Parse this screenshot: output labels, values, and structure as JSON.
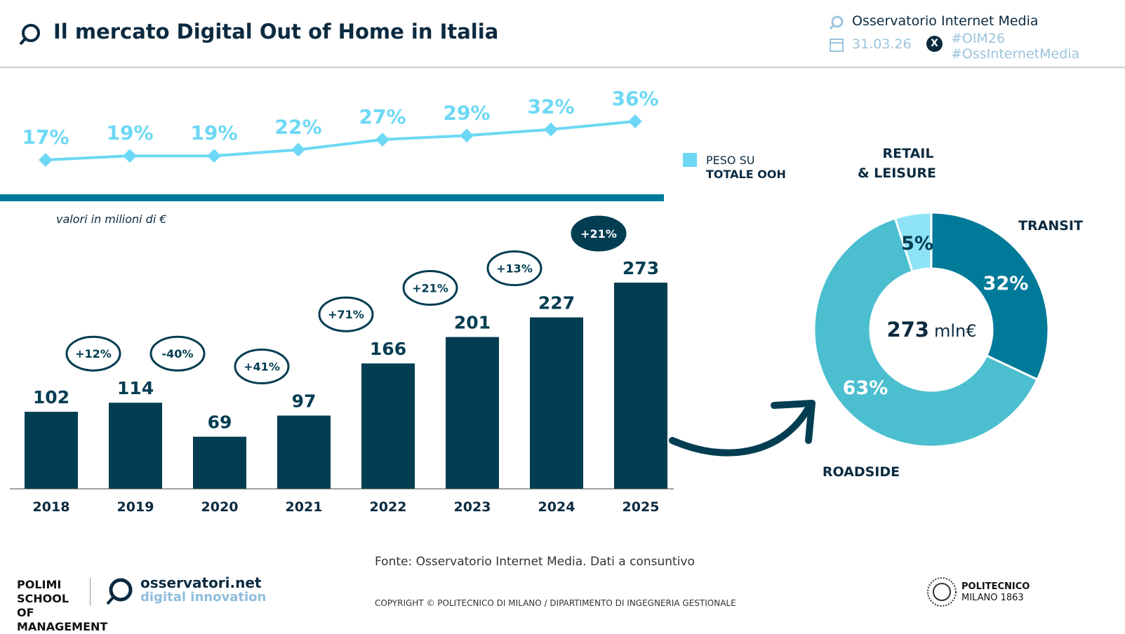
{
  "header": {
    "title": "Il mercato Digital Out of Home in Italia",
    "org": "Osservatorio Internet Media",
    "date": "31.03.26",
    "hashtag1": "#OIM26",
    "hashtag2": "#OssInternetMedia"
  },
  "colors": {
    "dark": "#023d52",
    "line": "#6dd8f5",
    "band": "#007a99",
    "transit": "#007a99",
    "roadside": "#4bbfcf",
    "retail": "#8ee3f5"
  },
  "chart_data": [
    {
      "type": "line",
      "x": [
        "2018",
        "2019",
        "2020",
        "2021",
        "2022",
        "2023",
        "2024",
        "2025"
      ],
      "values": [
        17,
        19,
        19,
        22,
        27,
        29,
        32,
        36
      ],
      "labels": [
        "17%",
        "19%",
        "19%",
        "22%",
        "27%",
        "29%",
        "32%",
        "36%"
      ],
      "legend": {
        "line1": "PESO SU",
        "line2": "TOTALE OOH"
      }
    },
    {
      "type": "bar",
      "categories": [
        "2018",
        "2019",
        "2020",
        "2021",
        "2022",
        "2023",
        "2024",
        "2025"
      ],
      "values": [
        102,
        114,
        69,
        97,
        166,
        201,
        227,
        273
      ],
      "growth": [
        "",
        "+12%",
        "-40%",
        "+41%",
        "+71%",
        "+21%",
        "+13%",
        "+21%"
      ],
      "note": "valori in milioni di €"
    },
    {
      "type": "pie",
      "center_label": "273",
      "center_unit": "mln€",
      "slices": [
        {
          "name": "TRANSIT",
          "value": 32,
          "label": "32%"
        },
        {
          "name": "ROADSIDE",
          "value": 63,
          "label": "63%"
        },
        {
          "name": "RETAIL",
          "name2": "& LEISURE",
          "value": 5,
          "label": "5%"
        }
      ]
    }
  ],
  "footer": {
    "source": "Fonte: Osservatorio Internet Media. Dati a consuntivo",
    "copyright": "COPYRIGHT © POLITECNICO DI MILANO / DIPARTIMENTO DI INGEGNERIA GESTIONALE",
    "logo1": "POLIMI SCHOOL OF MANAGEMENT",
    "logo2a": "osservatori.net",
    "logo2b": "digital innovation",
    "logo3a": "POLITECNICO",
    "logo3b": "MILANO 1863"
  }
}
